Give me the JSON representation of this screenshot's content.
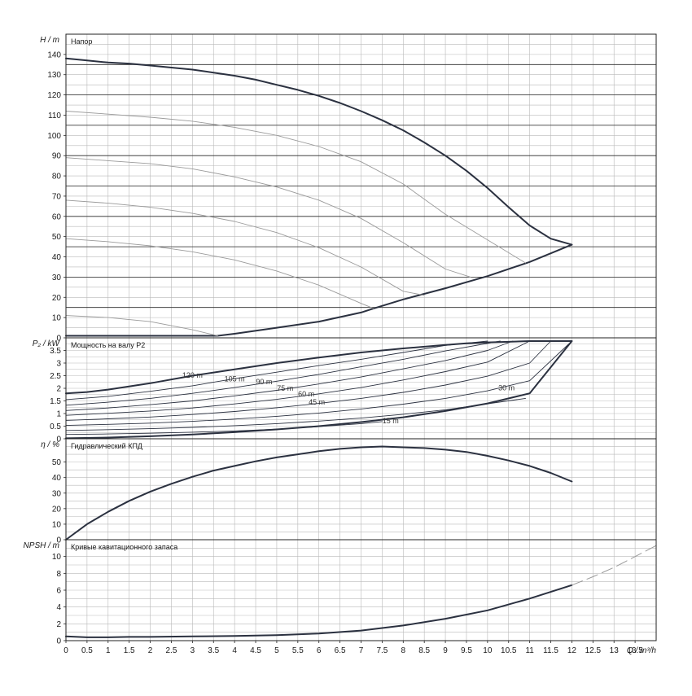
{
  "colors": {
    "grid_minor": "#b9b9b9",
    "grid_major": "#2a2a2a",
    "curve_main": "#2b3140",
    "curve_thin": "#9a9a9a",
    "text": "#1a1a1a"
  },
  "x_axis": {
    "label": "Q / m³/h",
    "range": [
      0,
      14
    ],
    "tick_step": 0.5,
    "tick_labels": [
      "0",
      "0.5",
      "1",
      "1.5",
      "2",
      "2.5",
      "3",
      "3.5",
      "4",
      "4.5",
      "5",
      "5.5",
      "6",
      "6.5",
      "7",
      "7.5",
      "8",
      "8.5",
      "9",
      "9.5",
      "10",
      "10.5",
      "11",
      "11.5",
      "12",
      "12.5",
      "13",
      "13.5"
    ]
  },
  "chart_data": [
    {
      "id": "head",
      "type": "line",
      "title": "Напор",
      "ylabel": "H / m",
      "ylim": [
        0,
        150
      ],
      "grid": true,
      "y_ticks": [
        0,
        10,
        20,
        30,
        40,
        50,
        60,
        70,
        80,
        90,
        100,
        110,
        120,
        130,
        140
      ],
      "major_lines": [
        15,
        30,
        45,
        60,
        75,
        90,
        105,
        120,
        135
      ],
      "series": [
        {
          "style": "main",
          "x": [
            0,
            0.5,
            1,
            1.5,
            2,
            2.5,
            3,
            3.5,
            4,
            4.5,
            5,
            5.5,
            6,
            6.5,
            7,
            7.5,
            8,
            8.5,
            9,
            9.5,
            10,
            10.5,
            11,
            11.5,
            12
          ],
          "y": [
            138,
            137,
            136,
            135.5,
            134.5,
            133.5,
            132.5,
            131,
            129.5,
            127.5,
            125,
            122.5,
            119.5,
            116,
            112,
            107.5,
            102.5,
            96.5,
            90,
            82.5,
            74,
            64.5,
            55.5,
            49,
            46
          ]
        },
        {
          "style": "main",
          "x": [
            0,
            1,
            2,
            3,
            3.6,
            4,
            5,
            6,
            7,
            7.3,
            8,
            9,
            10,
            11,
            12
          ],
          "y": [
            1,
            1,
            1,
            1,
            1,
            2,
            5,
            8,
            12.5,
            14.5,
            19,
            24.5,
            30.5,
            37.5,
            46
          ]
        },
        {
          "style": "thin",
          "x": [
            0,
            1,
            2,
            3,
            4,
            5,
            6,
            7,
            8,
            9,
            10.9
          ],
          "y": [
            112,
            110.5,
            109,
            107,
            104,
            100,
            94.5,
            87,
            76,
            61,
            37
          ]
        },
        {
          "style": "thin",
          "x": [
            0,
            1,
            2,
            3,
            4,
            5,
            6,
            7,
            8,
            9,
            9.6
          ],
          "y": [
            89,
            87.5,
            86,
            83.5,
            79.5,
            74.5,
            68,
            59,
            47,
            34,
            30
          ]
        },
        {
          "style": "thin",
          "x": [
            0,
            1,
            2,
            3,
            4,
            5,
            6,
            7,
            8,
            8.5
          ],
          "y": [
            68,
            66.5,
            64.5,
            61.5,
            57.5,
            52,
            44.5,
            35,
            23,
            21
          ]
        },
        {
          "style": "thin",
          "x": [
            0,
            1,
            2,
            3,
            4,
            5,
            6,
            7,
            7.3
          ],
          "y": [
            49,
            47.5,
            45.5,
            42.5,
            38.5,
            33,
            26,
            17,
            14.5
          ]
        },
        {
          "style": "thin",
          "x": [
            0,
            1,
            2,
            3,
            3.6
          ],
          "y": [
            11,
            10,
            8,
            4,
            1
          ]
        }
      ]
    },
    {
      "id": "power",
      "type": "line",
      "title": "Мощность на валу P2",
      "ylabel": "P₂ / kW",
      "ylim": [
        0,
        4
      ],
      "grid": true,
      "y_ticks": [
        "0",
        "0.5",
        "1",
        "1.5",
        "2",
        "2.5",
        "3",
        "3.5"
      ],
      "y_tick_values": [
        0,
        0.5,
        1,
        1.5,
        2,
        2.5,
        3,
        3.5
      ],
      "curve_labels": [
        {
          "text": "120 m",
          "x": 3.0,
          "y": 2.42
        },
        {
          "text": "105 m",
          "x": 4.0,
          "y": 2.28
        },
        {
          "text": "90 m",
          "x": 4.7,
          "y": 2.16
        },
        {
          "text": "75 m",
          "x": 5.2,
          "y": 1.91
        },
        {
          "text": "60 m",
          "x": 5.7,
          "y": 1.68
        },
        {
          "text": "45 m",
          "x": 5.95,
          "y": 1.35
        },
        {
          "text": "30 m",
          "x": 10.45,
          "y": 1.92
        },
        {
          "text": "15 m",
          "x": 7.7,
          "y": 0.62
        }
      ],
      "series": [
        {
          "style": "main",
          "x": [
            0,
            0.5,
            1,
            2,
            3,
            4,
            5,
            6,
            7,
            8,
            9,
            9.5,
            10,
            11,
            12
          ],
          "y": [
            1.8,
            1.85,
            1.95,
            2.2,
            2.5,
            2.75,
            3,
            3.22,
            3.42,
            3.58,
            3.72,
            3.78,
            3.82,
            3.87,
            3.87
          ]
        },
        {
          "style": "thin",
          "x": [
            0,
            1,
            2,
            3,
            4,
            5,
            6,
            7,
            8,
            9,
            10
          ],
          "y": [
            1.55,
            1.68,
            1.88,
            2.1,
            2.38,
            2.64,
            2.9,
            3.15,
            3.42,
            3.7,
            3.87
          ]
        },
        {
          "style": "thin",
          "x": [
            0,
            1,
            2,
            3,
            4,
            5,
            6,
            7,
            8,
            9,
            10.3
          ],
          "y": [
            1.33,
            1.45,
            1.6,
            1.8,
            2.03,
            2.28,
            2.55,
            2.85,
            3.15,
            3.48,
            3.87
          ]
        },
        {
          "style": "thin",
          "x": [
            0,
            1,
            2,
            3,
            4,
            5,
            6,
            7,
            8,
            9,
            10,
            10.6
          ],
          "y": [
            1.12,
            1.22,
            1.35,
            1.5,
            1.7,
            1.92,
            2.17,
            2.45,
            2.77,
            3.1,
            3.5,
            3.87
          ]
        },
        {
          "style": "thin",
          "x": [
            0,
            1,
            2,
            3,
            4,
            5,
            6,
            7,
            8,
            9,
            10,
            11
          ],
          "y": [
            0.93,
            1.01,
            1.1,
            1.22,
            1.38,
            1.56,
            1.78,
            2.03,
            2.33,
            2.66,
            3.04,
            3.87
          ]
        },
        {
          "style": "thin",
          "x": [
            0,
            1,
            2,
            3,
            4,
            5,
            6,
            7,
            8,
            9,
            10,
            11,
            11.5
          ],
          "y": [
            0.73,
            0.79,
            0.86,
            0.96,
            1.08,
            1.23,
            1.4,
            1.6,
            1.84,
            2.13,
            2.48,
            3.0,
            3.87
          ]
        },
        {
          "style": "thin",
          "x": [
            0,
            1,
            2,
            3,
            4,
            5,
            6,
            7,
            8,
            9,
            10,
            11,
            12
          ],
          "y": [
            0.53,
            0.57,
            0.62,
            0.69,
            0.78,
            0.89,
            1.02,
            1.18,
            1.37,
            1.6,
            1.9,
            2.3,
            3.87
          ]
        },
        {
          "style": "thin",
          "x": [
            0,
            1,
            2,
            3,
            4,
            5,
            6,
            7,
            8,
            9,
            10.9
          ],
          "y": [
            0.33,
            0.36,
            0.4,
            0.45,
            0.52,
            0.6,
            0.7,
            0.82,
            0.97,
            1.15,
            1.6
          ]
        },
        {
          "style": "thin",
          "x": [
            0,
            1,
            2,
            3,
            4,
            5,
            6,
            7,
            7.5
          ],
          "y": [
            0.17,
            0.19,
            0.22,
            0.26,
            0.31,
            0.38,
            0.48,
            0.6,
            0.68
          ]
        },
        {
          "style": "main",
          "x": [
            0,
            1,
            2,
            3,
            4,
            5,
            6,
            7,
            8,
            9,
            10,
            11,
            12
          ],
          "y": [
            0.02,
            0.05,
            0.1,
            0.17,
            0.26,
            0.37,
            0.5,
            0.66,
            0.85,
            1.1,
            1.4,
            1.8,
            3.87
          ]
        }
      ]
    },
    {
      "id": "efficiency",
      "type": "line",
      "title": "Гидравлический КПД",
      "ylabel": "η / %",
      "ylim": [
        0,
        65
      ],
      "grid": true,
      "y_ticks": [
        0,
        10,
        20,
        30,
        40,
        50
      ],
      "series": [
        {
          "style": "main",
          "x": [
            0,
            0.5,
            1,
            1.5,
            2,
            2.5,
            3,
            3.5,
            4,
            4.5,
            5,
            5.5,
            6,
            6.5,
            7,
            7.5,
            8,
            8.5,
            9,
            9.5,
            10,
            10.5,
            11,
            11.5,
            12
          ],
          "y": [
            0,
            10,
            18,
            25,
            31,
            36,
            40.5,
            44.5,
            47.5,
            50.5,
            53,
            55,
            57,
            58.5,
            59.5,
            60,
            59.5,
            59,
            58,
            56.5,
            54,
            51,
            47.5,
            43,
            37.5
          ]
        }
      ]
    },
    {
      "id": "npsh",
      "type": "line",
      "title": "Кривые кавитационного запаса",
      "ylabel": "NPSH / m",
      "ylim": [
        0,
        12
      ],
      "grid": true,
      "y_ticks": [
        0,
        2,
        4,
        6,
        8,
        10
      ],
      "series": [
        {
          "style": "main",
          "x": [
            0,
            0.5,
            1,
            1.5,
            2,
            3,
            4,
            5,
            6,
            7,
            8,
            9,
            10,
            11,
            12
          ],
          "y": [
            0.5,
            0.4,
            0.4,
            0.45,
            0.45,
            0.5,
            0.55,
            0.65,
            0.85,
            1.2,
            1.8,
            2.6,
            3.6,
            5.0,
            6.6
          ]
        },
        {
          "style": "dash",
          "x": [
            12,
            12.5,
            13,
            13.5,
            14
          ],
          "y": [
            6.6,
            7.6,
            8.7,
            10.0,
            11.3
          ]
        }
      ]
    }
  ]
}
